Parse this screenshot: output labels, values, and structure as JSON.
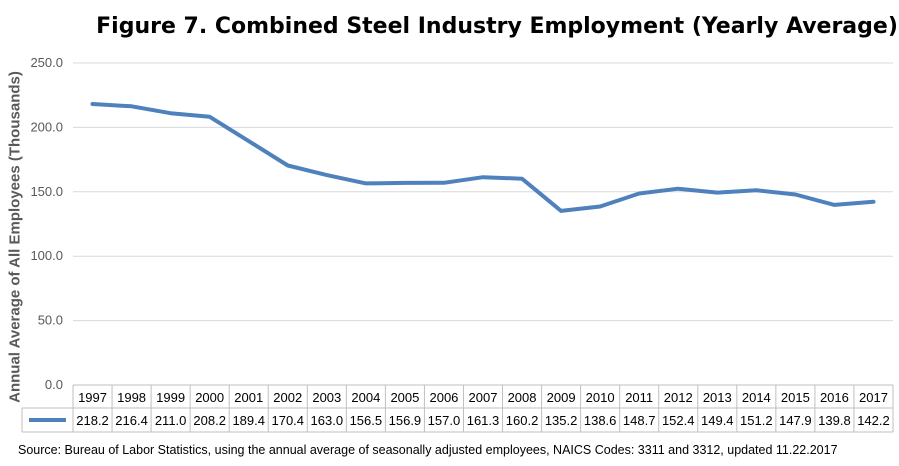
{
  "chart_data": {
    "type": "line",
    "title": "Figure 7. Combined Steel Industry Employment (Yearly Average)",
    "ylabel": "Annual Average of All Employees (Thousands)",
    "xlabel": "",
    "categories": [
      "1997",
      "1998",
      "1999",
      "2000",
      "2001",
      "2002",
      "2003",
      "2004",
      "2005",
      "2006",
      "2007",
      "2008",
      "2009",
      "2010",
      "2011",
      "2012",
      "2013",
      "2014",
      "2015",
      "2016",
      "2017"
    ],
    "series": [
      {
        "values": [
          218.2,
          216.4,
          211.0,
          208.2,
          189.4,
          170.4,
          163.0,
          156.5,
          156.9,
          157.0,
          161.3,
          160.2,
          135.2,
          138.6,
          148.7,
          152.4,
          149.4,
          151.2,
          147.9,
          139.8,
          142.2
        ],
        "labels": [
          "218.2",
          "216.4",
          "211.0",
          "208.2",
          "189.4",
          "170.4",
          "163.0",
          "156.5",
          "156.9",
          "157.0",
          "161.3",
          "160.2",
          "135.2",
          "138.6",
          "148.7",
          "152.4",
          "149.4",
          "151.2",
          "147.9",
          "139.8",
          "142.2"
        ]
      }
    ],
    "ylim": [
      0,
      250
    ],
    "yticks": [
      "0.0",
      "50.0",
      "100.0",
      "150.0",
      "200.0",
      "250.0"
    ],
    "grid": true,
    "data_table": true,
    "line_color": "#4f81bd",
    "grid_color": "#d9d9d9",
    "source": "Source: Bureau of Labor Statistics, using the annual average of seasonally adjusted employees, NAICS Codes: 3311 and 3312, updated 11.22.2017"
  }
}
